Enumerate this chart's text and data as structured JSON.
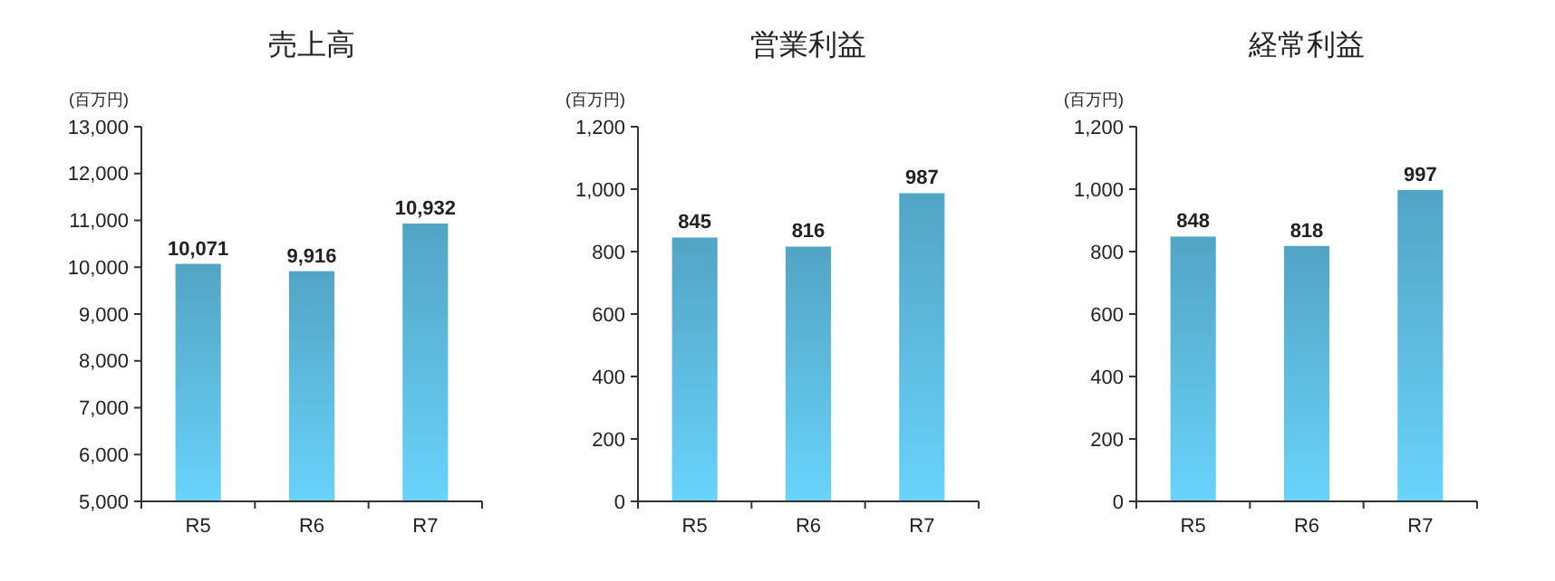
{
  "chart_data": [
    {
      "type": "bar",
      "title": "売上高",
      "ylabel": "(百万円)",
      "categories": [
        "R5",
        "R6",
        "R7"
      ],
      "values": [
        10071,
        9916,
        10932
      ],
      "value_labels": [
        "10,071",
        "9,916",
        "10,932"
      ],
      "color": "#5bb7da",
      "ylim": [
        5000,
        13000
      ],
      "yticks": [
        {
          "value": 5000,
          "label": "5,000"
        },
        {
          "value": 6000,
          "label": "6,000"
        },
        {
          "value": 7000,
          "label": "7,000"
        },
        {
          "value": 8000,
          "label": "8,000"
        },
        {
          "value": 9000,
          "label": "9,000"
        },
        {
          "value": 10000,
          "label": "10,000"
        },
        {
          "value": 11000,
          "label": "11,000"
        },
        {
          "value": 12000,
          "label": "12,000"
        },
        {
          "value": 13000,
          "label": "13,000"
        }
      ]
    },
    {
      "type": "bar",
      "title": "営業利益",
      "ylabel": "(百万円)",
      "categories": [
        "R5",
        "R6",
        "R7"
      ],
      "values": [
        845,
        816,
        987
      ],
      "value_labels": [
        "845",
        "816",
        "987"
      ],
      "color": "#5bb7da",
      "ylim": [
        0,
        1200
      ],
      "yticks": [
        0,
        200,
        400,
        600,
        800,
        {
          "value": 1000,
          "label": "1,000"
        },
        {
          "value": 1200,
          "label": "1,200"
        }
      ]
    },
    {
      "type": "bar",
      "title": "経常利益",
      "ylabel": "(百万円)",
      "categories": [
        "R5",
        "R6",
        "R7"
      ],
      "values": [
        848,
        818,
        997
      ],
      "value_labels": [
        "848",
        "818",
        "997"
      ],
      "color": "#5bb7da",
      "ylim": [
        0,
        1200
      ],
      "yticks": [
        0,
        200,
        400,
        600,
        800,
        {
          "value": 1000,
          "label": "1,000"
        },
        {
          "value": 1200,
          "label": "1,200"
        }
      ]
    }
  ]
}
